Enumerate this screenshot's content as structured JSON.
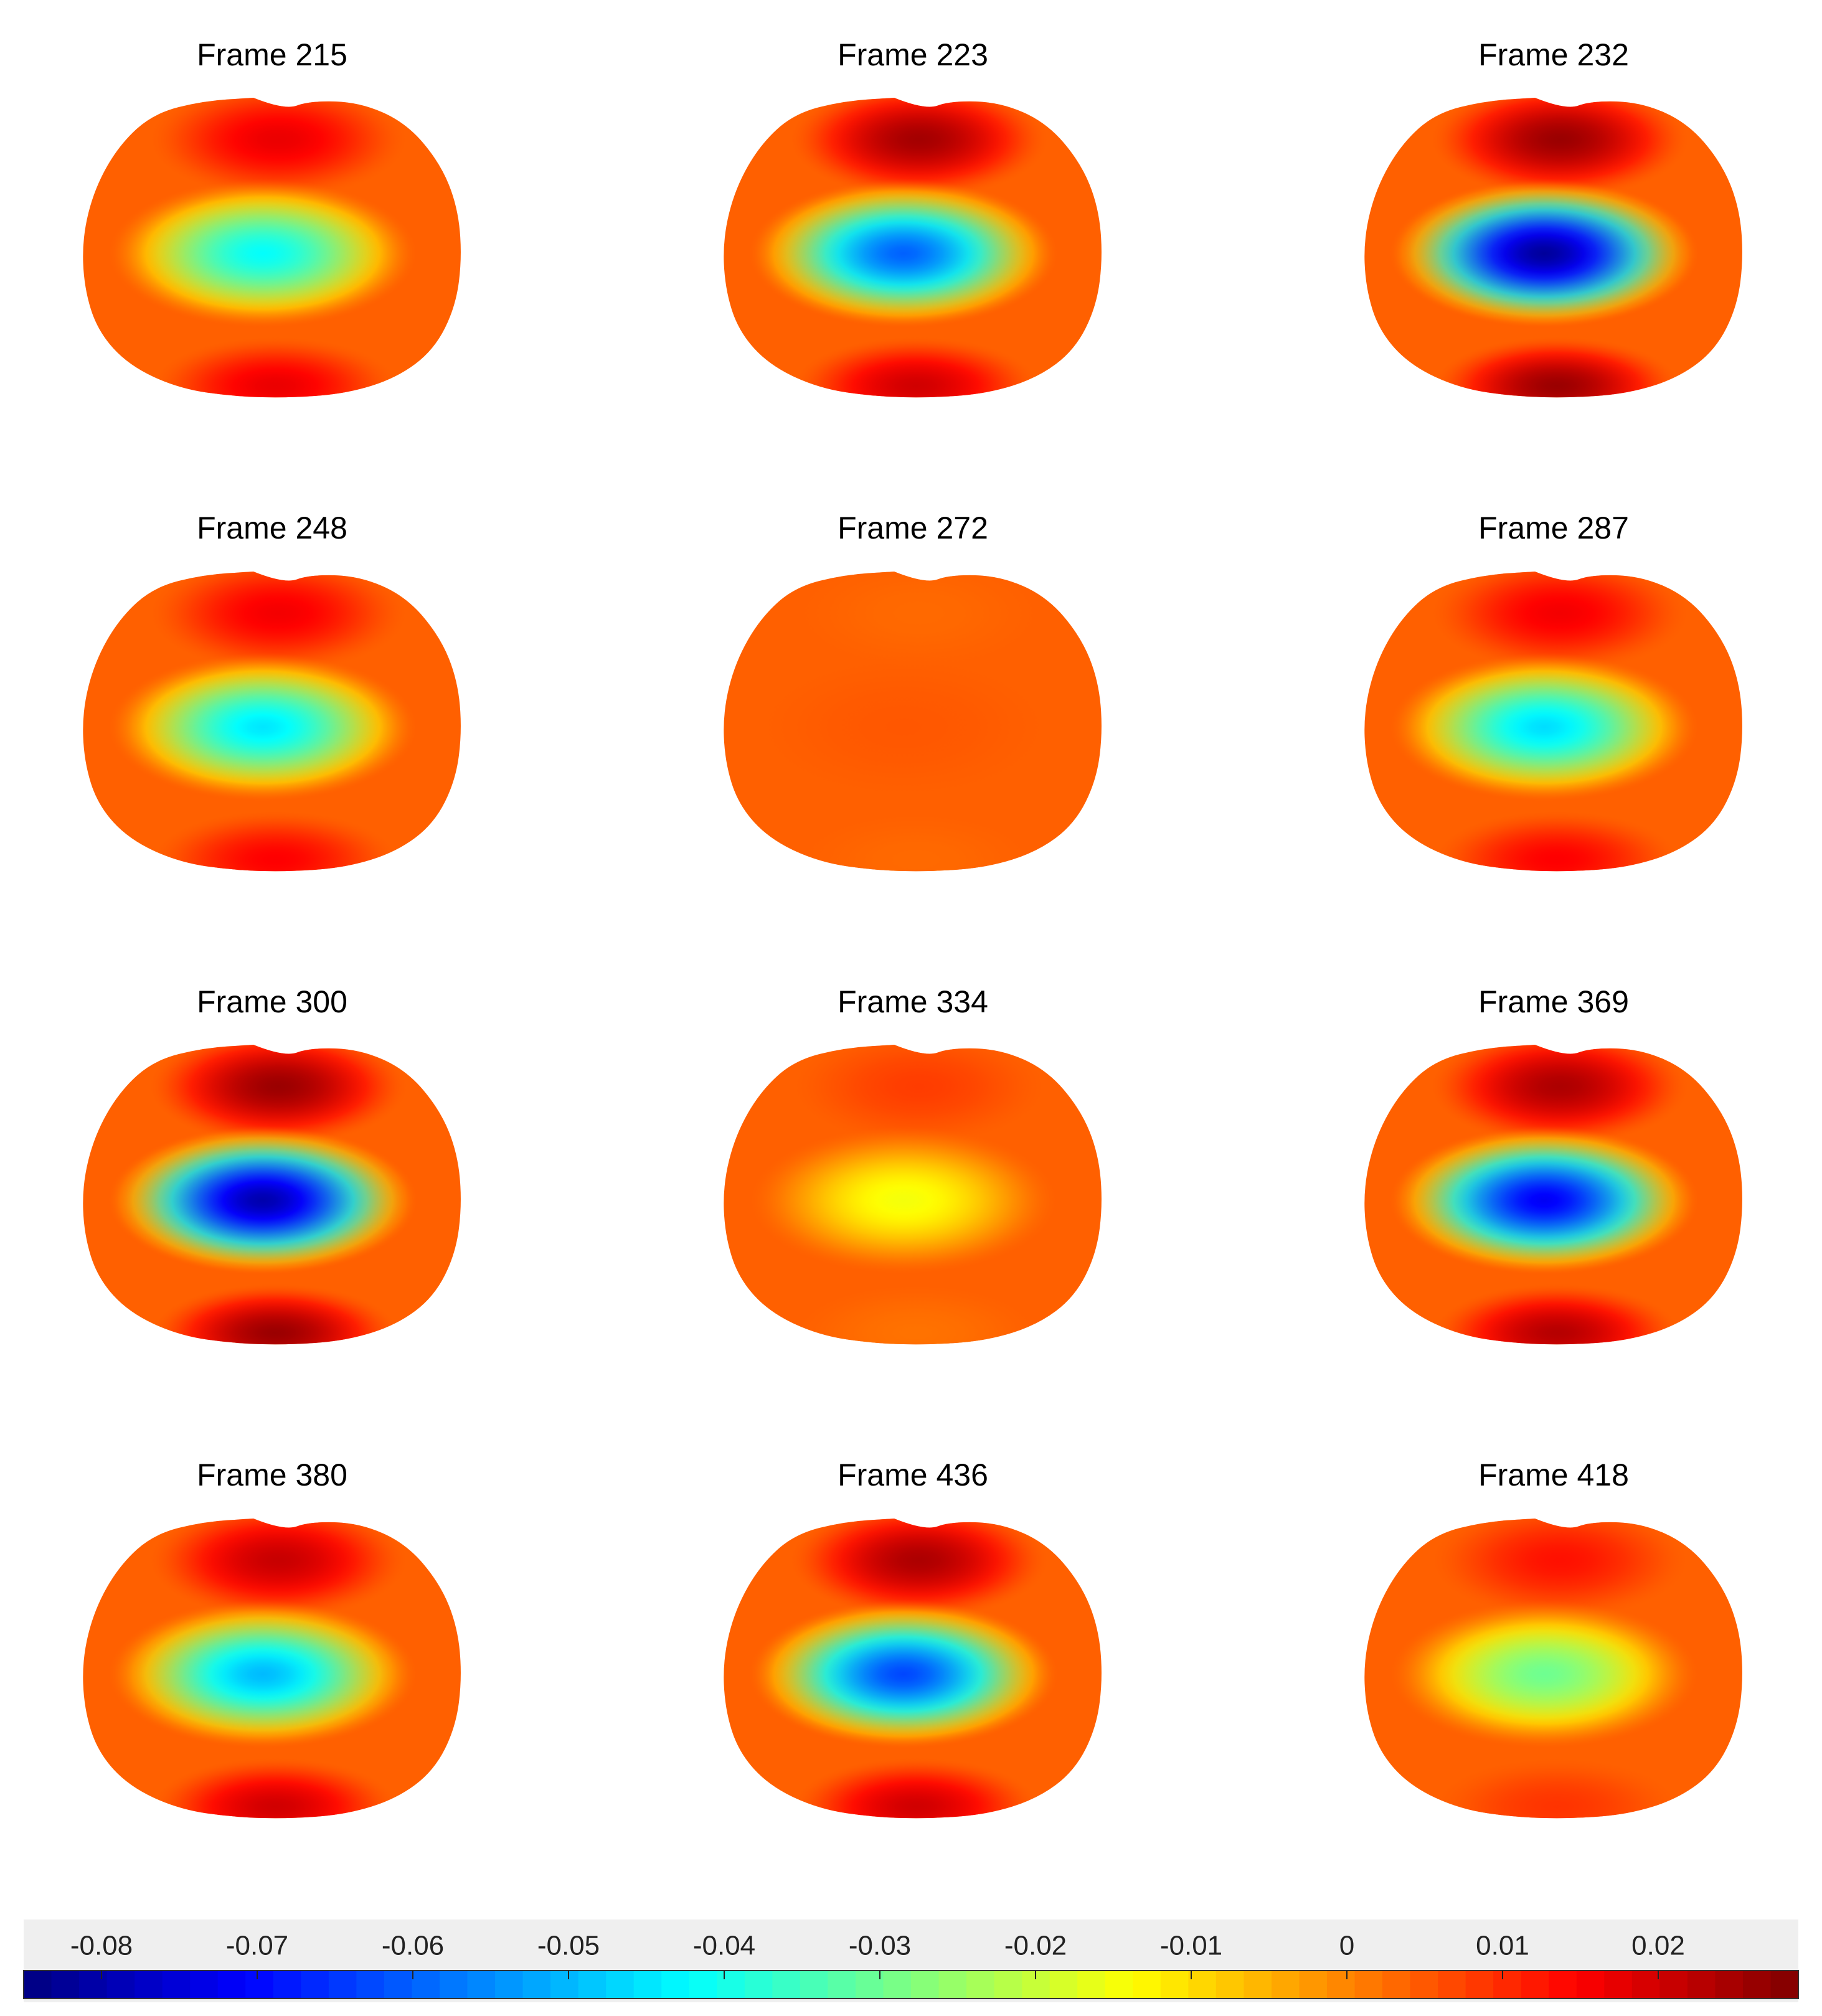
{
  "chart_data": {
    "type": "heatmap",
    "colormap": "jet",
    "color_range": [
      -0.085,
      0.029
    ],
    "panels": [
      {
        "title": "Frame 215",
        "top_peak": 0.017,
        "center_min": -0.042,
        "bottom_peak": 0.017
      },
      {
        "title": "Frame 223",
        "top_peak": 0.025,
        "center_min": -0.06,
        "bottom_peak": 0.02
      },
      {
        "title": "Frame 232",
        "top_peak": 0.026,
        "center_min": -0.082,
        "bottom_peak": 0.026
      },
      {
        "title": "Frame 248",
        "top_peak": 0.016,
        "center_min": -0.045,
        "bottom_peak": 0.015
      },
      {
        "title": "Frame 272",
        "top_peak": 0.003,
        "center_min": 0.005,
        "bottom_peak": 0.003
      },
      {
        "title": "Frame 287",
        "top_peak": 0.016,
        "center_min": -0.046,
        "bottom_peak": 0.015
      },
      {
        "title": "Frame 300",
        "top_peak": 0.026,
        "center_min": -0.08,
        "bottom_peak": 0.026
      },
      {
        "title": "Frame 334",
        "top_peak": 0.008,
        "center_min": -0.015,
        "bottom_peak": 0.002
      },
      {
        "title": "Frame 369",
        "top_peak": 0.024,
        "center_min": -0.072,
        "bottom_peak": 0.023
      },
      {
        "title": "Frame 380",
        "top_peak": 0.021,
        "center_min": -0.05,
        "bottom_peak": 0.02
      },
      {
        "title": "Frame 436",
        "top_peak": 0.024,
        "center_min": -0.063,
        "bottom_peak": 0.02
      },
      {
        "title": "Frame 418",
        "top_peak": 0.013,
        "center_min": -0.03,
        "bottom_peak": 0.009
      }
    ],
    "colorbar": {
      "orientation": "horizontal",
      "placement": "bottom",
      "ticks": [
        -0.08,
        -0.07,
        -0.06,
        -0.05,
        -0.04,
        -0.03,
        -0.02,
        -0.01,
        0,
        0.01,
        0.02
      ],
      "tick_labels": [
        "-0.08",
        "-0.07",
        "-0.06",
        "-0.05",
        "-0.04",
        "-0.03",
        "-0.02",
        "-0.01",
        "0",
        "0.01",
        "0.02"
      ]
    }
  }
}
